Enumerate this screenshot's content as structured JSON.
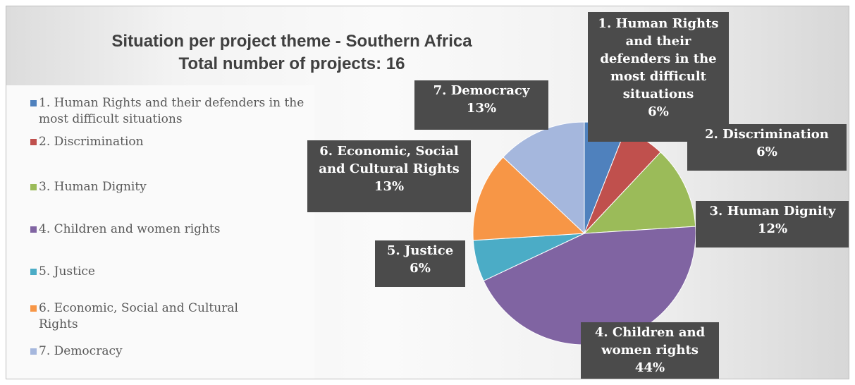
{
  "chart_data": {
    "type": "pie",
    "title_line1": "Situation per project theme - Southern Africa",
    "title_line2": "Total number of projects: 16",
    "legend_position": "left",
    "slices": [
      {
        "legend": "1. Human Rights and their defenders in the most difficult situations",
        "label": "1. Human Rights and their defenders in the most difficult situations",
        "percent_label": "6%",
        "value": 6,
        "color": "#4f81bd"
      },
      {
        "legend": "2. Discrimination",
        "label": "2. Discrimination",
        "percent_label": "6%",
        "value": 6,
        "color": "#c0504d"
      },
      {
        "legend": "3. Human Dignity",
        "label": "3. Human Dignity",
        "percent_label": "12%",
        "value": 12,
        "color": "#9bbb59"
      },
      {
        "legend": "4. Children and women rights",
        "label": "4. Children and women rights",
        "percent_label": "44%",
        "value": 44,
        "color": "#8064a2"
      },
      {
        "legend": "5. Justice",
        "label": "5. Justice",
        "percent_label": "6%",
        "value": 6,
        "color": "#4bacc6"
      },
      {
        "legend": "6. Economic, Social and Cultural Rights",
        "label": "6. Economic, Social and Cultural Rights",
        "percent_label": "13%",
        "value": 13,
        "color": "#f79646"
      },
      {
        "legend": "7. Democracy",
        "label": "7. Democracy",
        "percent_label": "13%",
        "value": 13,
        "color": "#a5b7dd"
      }
    ]
  }
}
